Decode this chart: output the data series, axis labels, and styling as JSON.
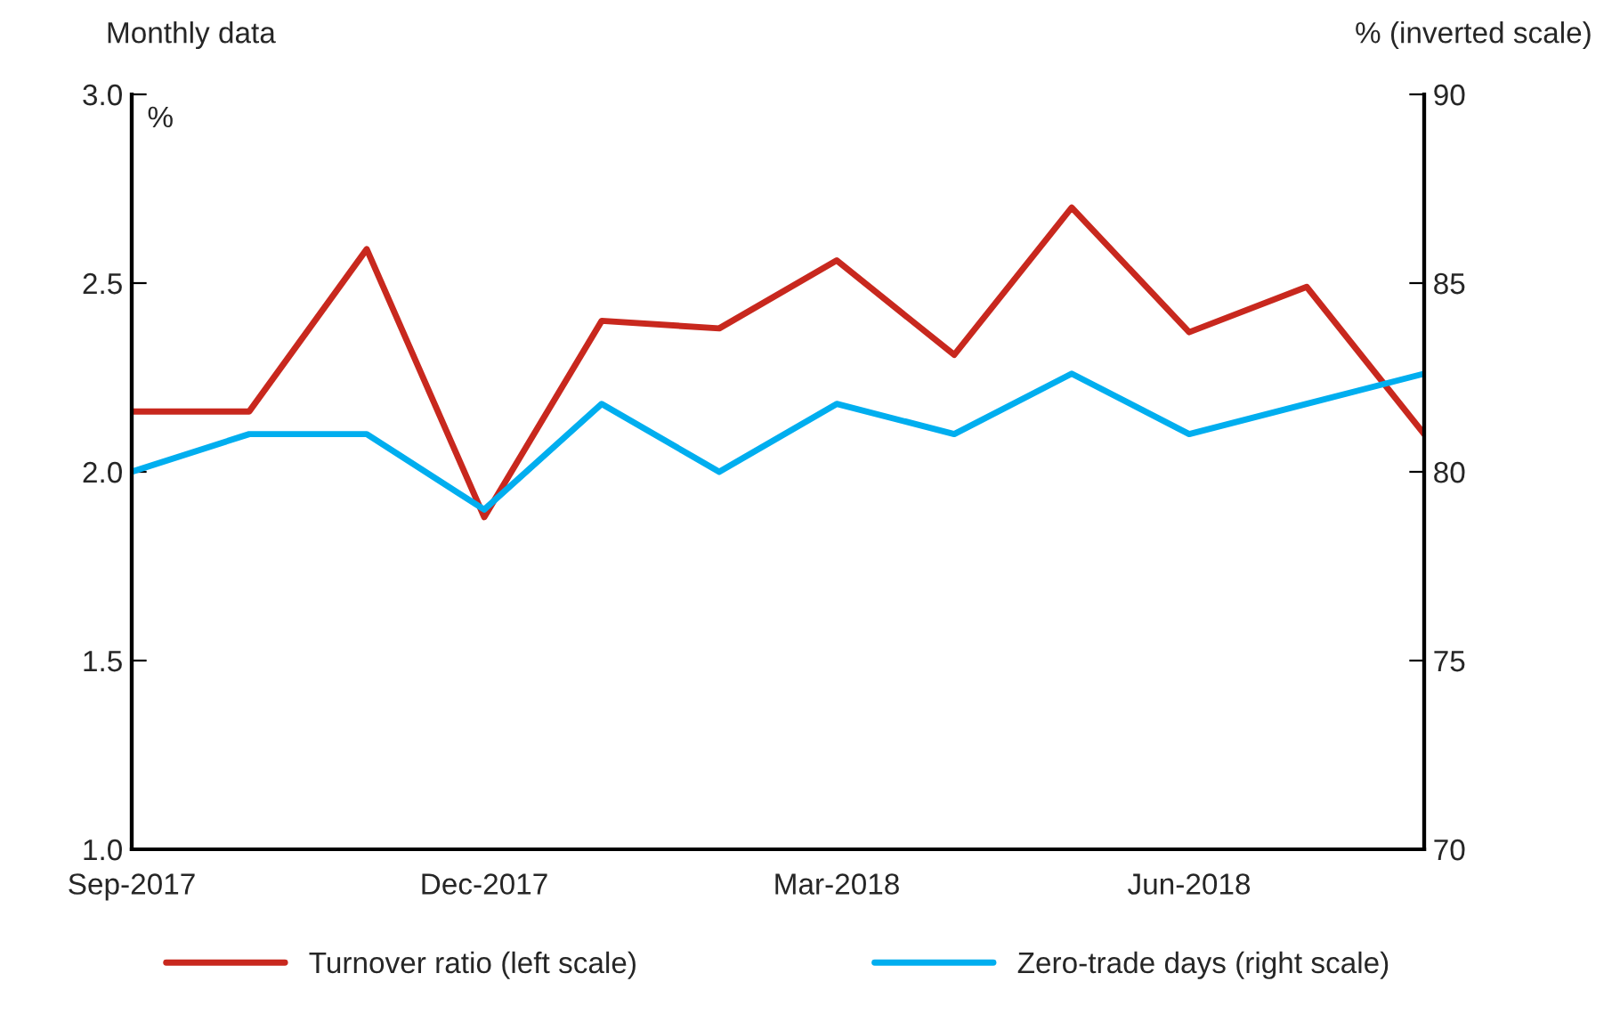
{
  "chart_data": {
    "type": "line",
    "ylabel": "Monthly data",
    "y2label": "% (inverted scale)",
    "categories": [
      "Sep-2017",
      null,
      null,
      "Dec-2017",
      null,
      null,
      "Mar-2018",
      null,
      null,
      "Jun-2018",
      null,
      null
    ],
    "series": [
      {
        "name": "Turnover ratio (left scale)",
        "color": "#c8281e",
        "values": [
          2.16,
          2.16,
          2.59,
          1.88,
          2.4,
          2.38,
          2.56,
          2.31,
          2.7,
          2.37,
          2.49,
          2.1
        ]
      },
      {
        "name": "Zero-trade days (right scale)",
        "color": "#00aeef",
        "axis": "y2",
        "values": [
          80,
          81,
          81,
          79,
          81.8,
          80,
          81.8,
          81,
          82.6,
          81,
          81.8,
          82.6
        ]
      }
    ],
    "ylim": [
      1.0,
      3.0
    ],
    "yticks": [
      {
        "value": 1.0,
        "label": "1.0"
      },
      1.5,
      {
        "value": 2.0,
        "label": "2.0"
      },
      2.5,
      {
        "value": 3.0,
        "label": "3.0"
      }
    ],
    "y2lim": [
      70,
      90
    ],
    "y2ticks": [
      70,
      75,
      80,
      85,
      90
    ],
    "annotations": [
      "%"
    ],
    "legend": "bottom",
    "grid": false
  }
}
